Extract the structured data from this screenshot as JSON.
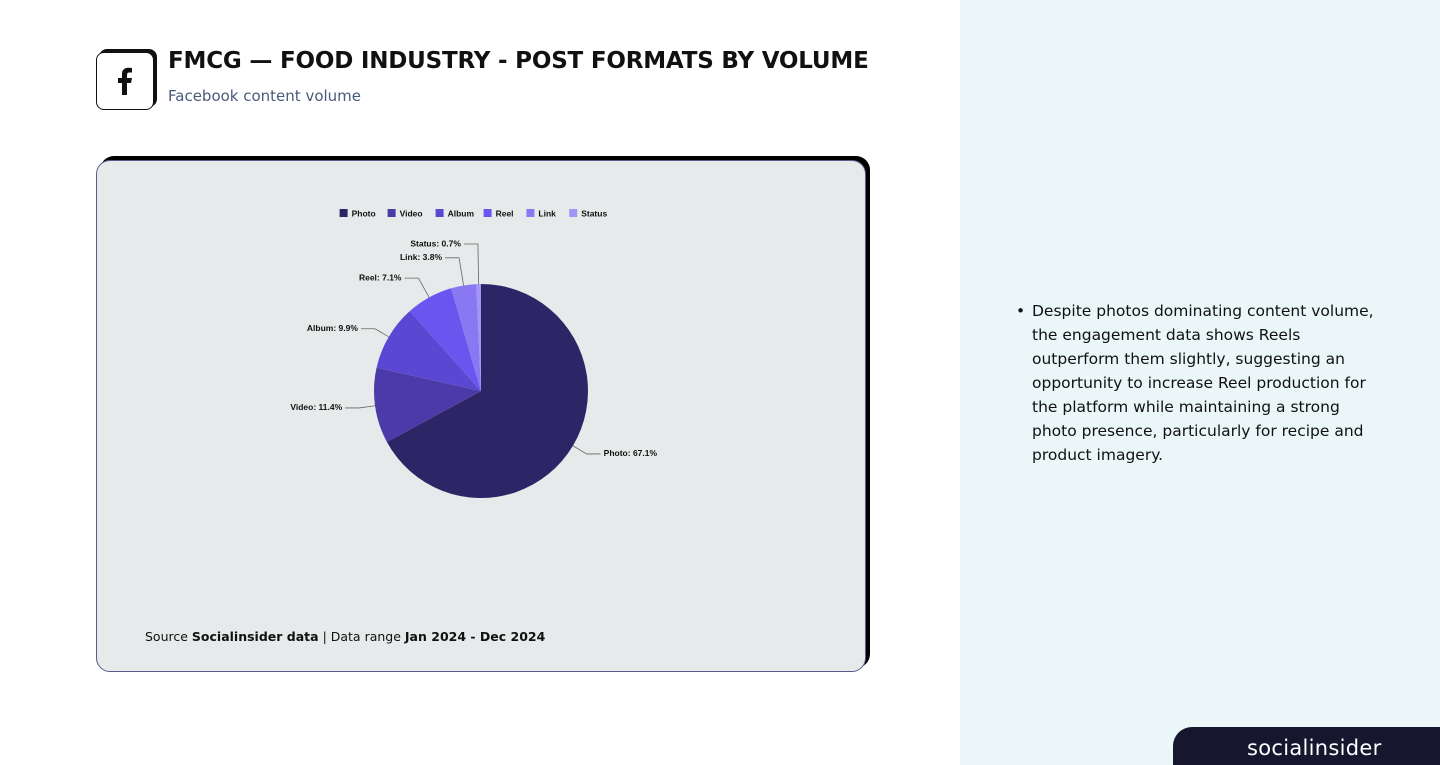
{
  "header": {
    "title": "FMCG — FOOD INDUSTRY - POST FORMATS BY VOLUME",
    "subtitle": "Facebook content volume"
  },
  "chart_data": {
    "type": "pie",
    "categories": [
      "Photo",
      "Video",
      "Album",
      "Reel",
      "Link",
      "Status"
    ],
    "values": [
      67.1,
      11.4,
      9.9,
      7.1,
      3.8,
      0.7
    ],
    "value_labels": [
      "Photo: 67.1%",
      "Video: 11.4%",
      "Album: 9.9%",
      "Reel: 7.1%",
      "Link: 3.8%",
      "Status: 0.7%"
    ],
    "colors": [
      "#2e2566",
      "#4b3aa8",
      "#5a47d2",
      "#6c55ee",
      "#8a78f2",
      "#a394f5"
    ],
    "legend": "top"
  },
  "source": {
    "prefix": "Source",
    "name": "Socialinsider data",
    "range_prefix": "| Data range",
    "range": "Jan 2024 - Dec 2024"
  },
  "insight": {
    "bullets": [
      "Despite photos dominating content volume, the engagement data shows Reels outperform them slightly, suggesting an opportunity to increase Reel production for the platform while maintaining a strong photo presence, particularly for recipe and product imagery."
    ]
  },
  "brand": "socialinsider"
}
